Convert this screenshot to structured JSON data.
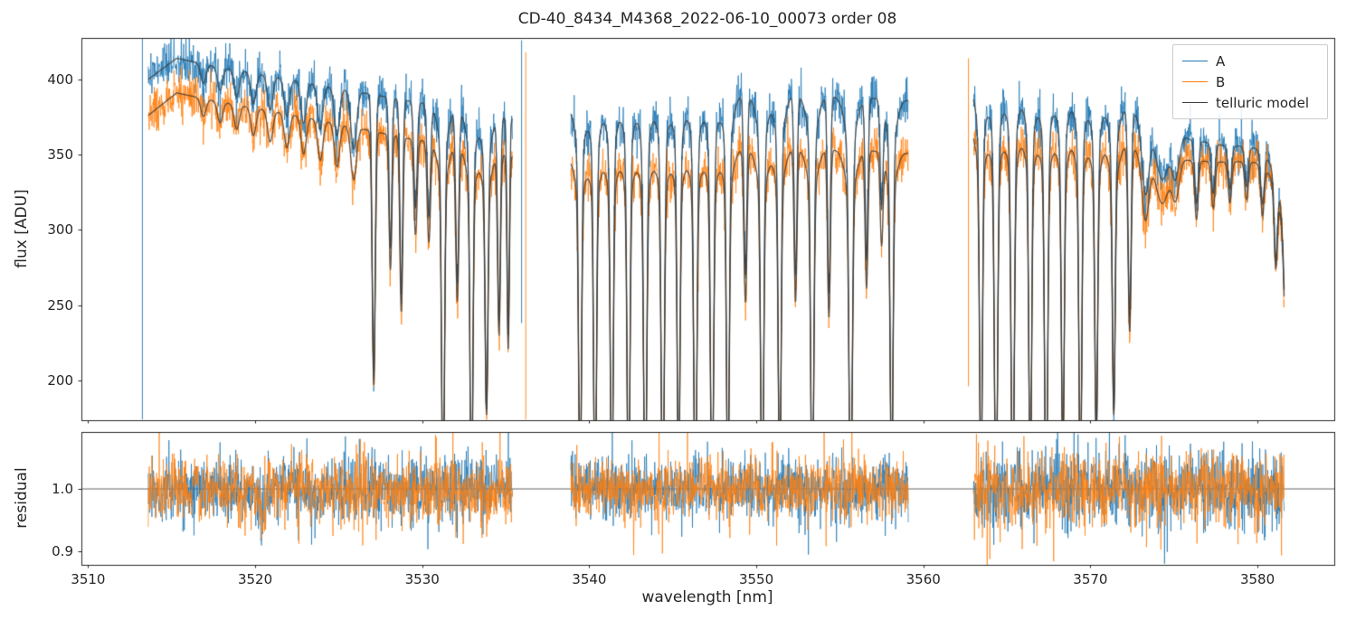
{
  "chart_data": {
    "type": "line",
    "title": "CD-40_8434_M4368_2022-06-10_00073  order 08",
    "xlabel": "wavelength [nm]",
    "xlim": [
      3509.6,
      3584.6
    ],
    "xticks": [
      3510,
      3520,
      3530,
      3540,
      3550,
      3560,
      3570,
      3580
    ],
    "xtick_labels": [
      "3510",
      "3520",
      "3530",
      "3540",
      "3550",
      "3560",
      "3570",
      "3580"
    ],
    "legend": [
      "A",
      "B",
      "telluric model"
    ],
    "colors": {
      "A": "#1f77b4",
      "B": "#ff7f0e",
      "model": "#3b3b3b"
    },
    "panels": [
      {
        "name": "flux",
        "ylabel": "flux [ADU]",
        "ylim": [
          173.5,
          427.5
        ],
        "yticks": [
          200,
          250,
          300,
          350,
          400
        ],
        "ytick_labels": [
          "200",
          "250",
          "300",
          "350",
          "400"
        ]
      },
      {
        "name": "residual",
        "ylabel": "residual",
        "ylim": [
          0.8783,
          1.0913
        ],
        "yticks": [
          0.9,
          1.0
        ],
        "ytick_labels": [
          "0.9",
          "1.0"
        ],
        "hline": 1.0
      }
    ],
    "noise": {
      "flux_sigma": 7.5
    },
    "line_floor": 150,
    "segments": [
      {
        "x0": 3513.6,
        "x1": 3535.4,
        "rsig": 0.026,
        "contA": [
          [
            3513.6,
            400
          ],
          [
            3515.3,
            414
          ],
          [
            3517,
            410
          ],
          [
            3520,
            404
          ],
          [
            3523,
            398
          ],
          [
            3526,
            392
          ],
          [
            3529,
            386
          ],
          [
            3532,
            381
          ],
          [
            3535.4,
            374
          ]
        ],
        "contB": [
          [
            3513.6,
            376
          ],
          [
            3515.3,
            391
          ],
          [
            3517,
            387
          ],
          [
            3520,
            381
          ],
          [
            3523,
            375
          ],
          [
            3526,
            368
          ],
          [
            3529,
            361
          ],
          [
            3532,
            356
          ],
          [
            3535.4,
            349
          ]
        ],
        "lines": [
          [
            3516.9,
            0.22,
            0.05
          ],
          [
            3517.9,
            0.22,
            0.06
          ],
          [
            3518.9,
            0.22,
            0.07
          ],
          [
            3519.9,
            0.22,
            0.08
          ],
          [
            3520.9,
            0.22,
            0.09
          ],
          [
            3521.9,
            0.22,
            0.1
          ],
          [
            3522.9,
            0.22,
            0.11
          ],
          [
            3523.9,
            0.22,
            0.12
          ],
          [
            3524.9,
            0.22,
            0.13
          ],
          [
            3525.9,
            0.24,
            0.16
          ],
          [
            3527.1,
            0.13,
            0.78
          ],
          [
            3528.1,
            0.12,
            0.42
          ],
          [
            3528.75,
            0.12,
            0.55
          ],
          [
            3529.6,
            0.14,
            0.3
          ],
          [
            3530.4,
            0.14,
            0.32
          ],
          [
            3531.25,
            0.12,
            1.2
          ],
          [
            3532.1,
            0.13,
            0.5
          ],
          [
            3532.95,
            0.12,
            1.2
          ],
          [
            3533.85,
            0.12,
            0.85
          ],
          [
            3534.6,
            0.12,
            0.6
          ],
          [
            3535.15,
            0.1,
            0.65
          ]
        ],
        "rdips": [
          [
            3520.4,
            0.22,
            0.045
          ]
        ]
      },
      {
        "x0": 3538.9,
        "x1": 3559.1,
        "rsig": 0.024,
        "contA": [
          [
            3538.9,
            382
          ],
          [
            3543,
            386
          ],
          [
            3548,
            389
          ],
          [
            3552,
            390
          ],
          [
            3556,
            388
          ],
          [
            3559.1,
            386
          ]
        ],
        "contB": [
          [
            3538.9,
            348
          ],
          [
            3543,
            351
          ],
          [
            3548,
            353
          ],
          [
            3552,
            354
          ],
          [
            3556,
            353
          ],
          [
            3559.1,
            351
          ]
        ],
        "lines": [
          [
            3539.45,
            0.12,
            1.15
          ],
          [
            3540.35,
            0.12,
            1.2
          ],
          [
            3541.35,
            0.12,
            1.2
          ],
          [
            3542.35,
            0.12,
            1.2
          ],
          [
            3543.35,
            0.13,
            1.2
          ],
          [
            3544.4,
            0.13,
            1.2
          ],
          [
            3545.35,
            0.12,
            1.1
          ],
          [
            3546.35,
            0.13,
            1.2
          ],
          [
            3547.35,
            0.13,
            1.2
          ],
          [
            3548.3,
            0.12,
            1.12
          ],
          [
            3549.35,
            0.13,
            0.5
          ],
          [
            3550.35,
            0.13,
            1.2
          ],
          [
            3551.4,
            0.12,
            1.12
          ],
          [
            3552.35,
            0.12,
            0.5
          ],
          [
            3553.35,
            0.13,
            1.2
          ],
          [
            3554.35,
            0.12,
            0.55
          ],
          [
            3555.65,
            0.14,
            1.2
          ],
          [
            3556.6,
            0.12,
            0.45
          ],
          [
            3557.5,
            0.12,
            0.3
          ],
          [
            3558.1,
            0.12,
            1.1
          ]
        ],
        "rdips": []
      },
      {
        "x0": 3563.0,
        "x1": 3581.6,
        "rsig": 0.03,
        "contA": [
          [
            3563,
            396
          ],
          [
            3566,
            393
          ],
          [
            3569,
            390
          ],
          [
            3571.5,
            385
          ],
          [
            3573,
            375
          ],
          [
            3576,
            360
          ],
          [
            3578,
            356
          ],
          [
            3580.5,
            355
          ],
          [
            3581.6,
            348
          ]
        ],
        "contB": [
          [
            3563,
            369
          ],
          [
            3566,
            366
          ],
          [
            3569,
            363
          ],
          [
            3571.5,
            359
          ],
          [
            3573,
            352
          ],
          [
            3576,
            346
          ],
          [
            3578,
            345
          ],
          [
            3580.5,
            346
          ],
          [
            3581.6,
            340
          ]
        ],
        "lines": [
          [
            3563.45,
            0.12,
            1.1
          ],
          [
            3564.35,
            0.13,
            1.2
          ],
          [
            3565.35,
            0.13,
            1.2
          ],
          [
            3566.4,
            0.12,
            1.1
          ],
          [
            3567.35,
            0.13,
            1.2
          ],
          [
            3568.35,
            0.12,
            1.0
          ],
          [
            3569.4,
            0.12,
            1.1
          ],
          [
            3570.35,
            0.12,
            0.95
          ],
          [
            3571.4,
            0.12,
            0.85
          ],
          [
            3572.35,
            0.13,
            0.6
          ],
          [
            3573.3,
            0.3,
            0.22
          ],
          [
            3574.3,
            0.55,
            0.16
          ],
          [
            3575.1,
            0.3,
            0.13
          ],
          [
            3576.35,
            0.15,
            0.2
          ],
          [
            3577.35,
            0.15,
            0.16
          ],
          [
            3578.35,
            0.15,
            0.14
          ],
          [
            3579.35,
            0.15,
            0.13
          ],
          [
            3580.3,
            0.15,
            0.17
          ],
          [
            3581.1,
            0.14,
            0.3
          ],
          [
            3581.95,
            0.35,
            1.0
          ]
        ],
        "rdips": []
      }
    ],
    "spikes": [
      {
        "x": 3513.25,
        "series": "A",
        "y0": 427,
        "y1": 174
      },
      {
        "x": 3535.95,
        "series": "A",
        "y0": 426,
        "y1": 238
      },
      {
        "x": 3536.2,
        "series": "B",
        "y0": 418,
        "y1": 174
      },
      {
        "x": 3562.7,
        "series": "B",
        "y0": 414,
        "y1": 196
      }
    ]
  }
}
